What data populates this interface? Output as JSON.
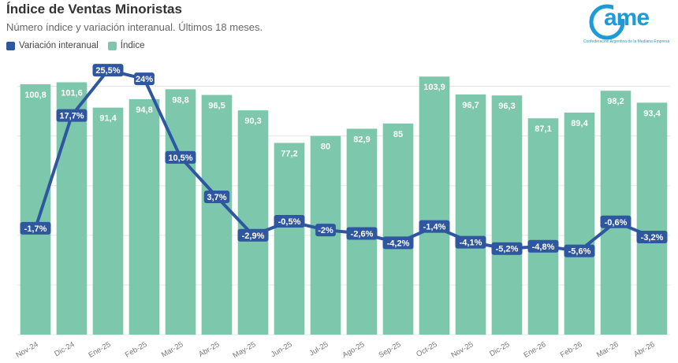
{
  "header": {
    "title": "Índice de Ventas Minoristas",
    "subtitle": "Número índice y variación interanual. Últimos 18 meses."
  },
  "logo": {
    "text": "ame",
    "tagline": "Confederación Argentina de la Mediana Empresa"
  },
  "colors": {
    "bar": "#7dc7ad",
    "line": "#2f57a0",
    "label_text": "#ffffff",
    "grid": "#e6e6e6"
  },
  "chart_data": {
    "type": "bar",
    "title": "Índice de Ventas Minoristas",
    "subtitle": "Número índice y variación interanual. Últimos 18 meses.",
    "categories": [
      "Nov-24",
      "Dic-24",
      "Ene-25",
      "Feb-25",
      "Mar-25",
      "Abr-25",
      "May-25",
      "Jun-25",
      "Jul-25",
      "Ago-25",
      "Sep-25",
      "Oct-25",
      "Nov-25",
      "Dic-25",
      "Ene-26",
      "Feb-26",
      "Mar-26",
      "Abr-26"
    ],
    "series": [
      {
        "name": "Índice",
        "type": "bar",
        "axis": "left",
        "values": [
          100.8,
          101.6,
          91.4,
          94.8,
          98.8,
          96.5,
          90.3,
          77.2,
          80,
          82.9,
          85,
          103.9,
          96.7,
          96.3,
          87.1,
          89.4,
          98.2,
          93.4
        ],
        "labels": [
          "100,8",
          "101,6",
          "91,4",
          "94,8",
          "98,8",
          "96,5",
          "90,3",
          "77,2",
          "80",
          "82,9",
          "85",
          "103,9",
          "96,7",
          "96,3",
          "87,1",
          "89,4",
          "98,2",
          "93,4"
        ]
      },
      {
        "name": "Variación interanual",
        "type": "line",
        "axis": "right",
        "values": [
          -1.7,
          17.7,
          25.5,
          24,
          10.5,
          3.7,
          -2.9,
          -0.5,
          -2,
          -2.6,
          -4.2,
          -1.4,
          -4.1,
          -5.2,
          -4.8,
          -5.6,
          -0.6,
          -3.2
        ],
        "labels": [
          "-1,7%",
          "17,7%",
          "25,5%",
          "24%",
          "10,5%",
          "3,7%",
          "-2,9%",
          "-0,5%",
          "-2%",
          "-2,6%",
          "-4,2%",
          "-1,4%",
          "-4,1%",
          "-5,2%",
          "-4,8%",
          "-5,6%",
          "-0,6%",
          "-3,2%"
        ]
      }
    ],
    "ylim_left": [
      0,
      110
    ],
    "ylim_right": [
      -20,
      27
    ],
    "grid": true,
    "legend_position": "top-left"
  }
}
